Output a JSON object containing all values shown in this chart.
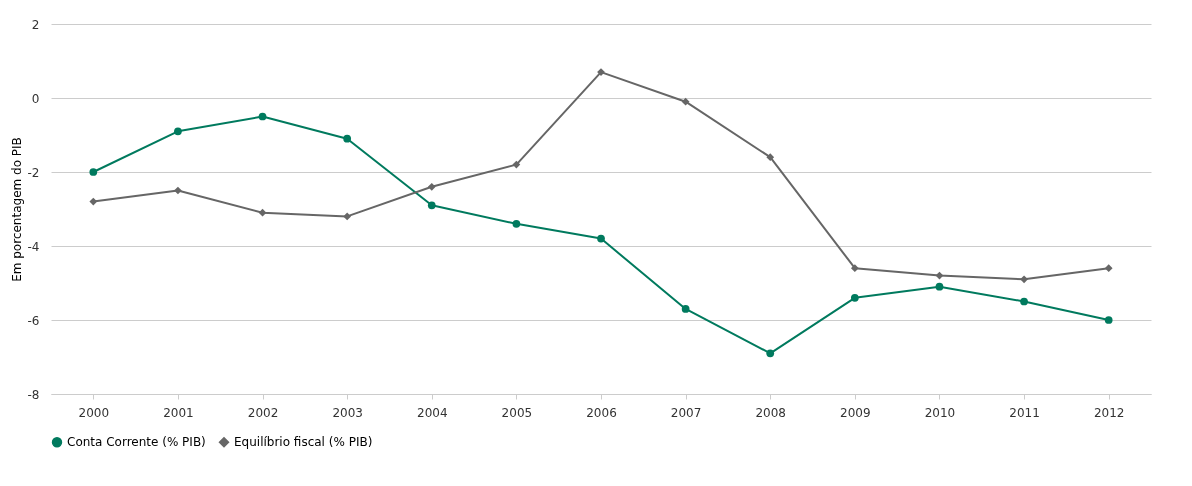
{
  "chart_data": {
    "type": "line",
    "ylabel": "Em porcentagem do PIB",
    "categories": [
      "2000",
      "2001",
      "2002",
      "2003",
      "2004",
      "2005",
      "2006",
      "2007",
      "2008",
      "2009",
      "2010",
      "2011",
      "2012"
    ],
    "series": [
      {
        "name": "Conta Corrente (% PIB)",
        "color": "#007a5e",
        "marker": "circle",
        "values": [
          -2.0,
          -0.9,
          -0.5,
          -1.1,
          -2.9,
          -3.4,
          -3.8,
          -5.7,
          -6.9,
          -5.4,
          -5.1,
          -5.5,
          -6.0
        ]
      },
      {
        "name": "Equilíbrio fiscal (% PIB)",
        "color": "#666666",
        "marker": "diamond",
        "values": [
          -2.8,
          -2.5,
          -3.1,
          -3.2,
          -2.4,
          -1.8,
          0.7,
          -0.1,
          -1.6,
          -4.6,
          -4.8,
          -4.9,
          -4.6
        ]
      }
    ],
    "ylim": [
      -8,
      2
    ],
    "yticks": [
      -8,
      -6,
      -4,
      -2,
      0,
      2
    ],
    "grid": "y",
    "legend": "bottom",
    "line_style": "solid"
  }
}
